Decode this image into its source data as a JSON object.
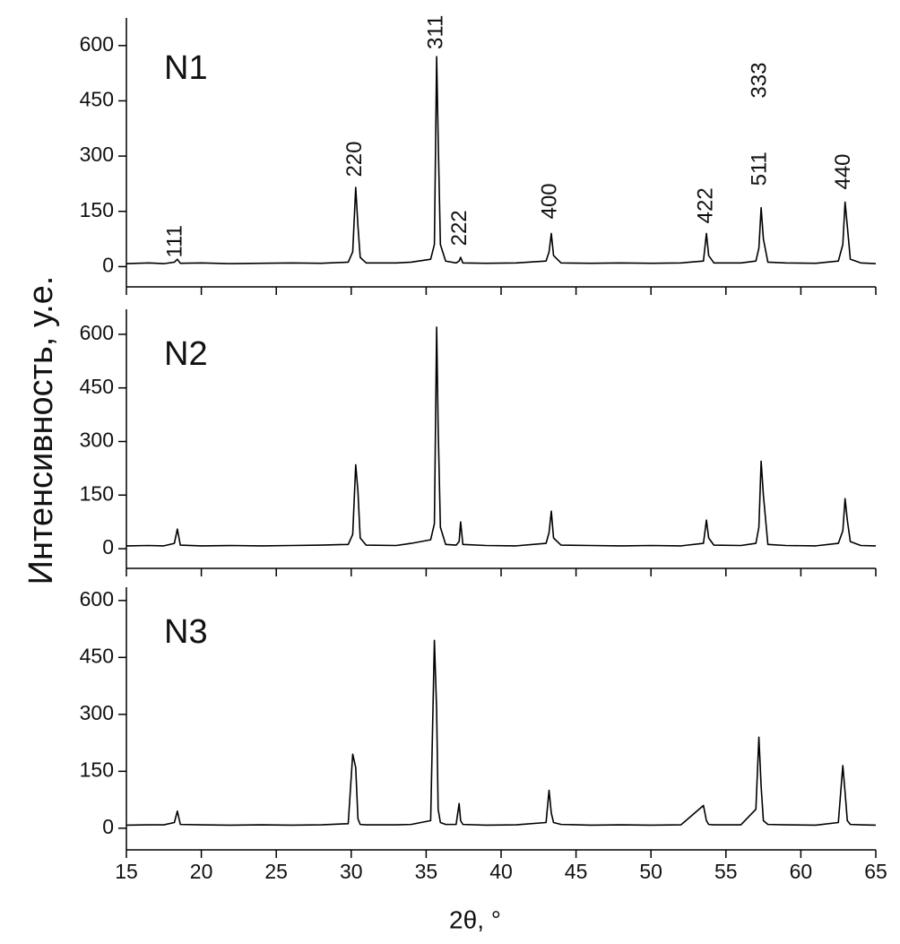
{
  "y_label": "Интенсивность, у.е.",
  "x_label": "2θ, °",
  "chart_data": [
    {
      "type": "line",
      "title": "N1",
      "color": "#000000",
      "x": [
        15,
        16.5,
        17.5,
        18.2,
        18.4,
        18.6,
        20,
        22,
        24,
        26,
        28,
        29.8,
        30.1,
        30.3,
        30.45,
        30.6,
        31,
        33,
        34,
        35.3,
        35.55,
        35.7,
        35.8,
        35.95,
        36.3,
        37,
        37.2,
        37.3,
        37.45,
        39,
        41,
        43,
        43.2,
        43.35,
        43.5,
        44,
        46,
        48,
        50,
        52,
        53.5,
        53.7,
        53.85,
        54.2,
        56,
        57,
        57.2,
        57.35,
        57.5,
        57.8,
        59,
        61,
        62.5,
        62.8,
        62.95,
        63.1,
        63.3,
        64,
        65
      ],
      "values": [
        8,
        10,
        8,
        12,
        20,
        9,
        10,
        8,
        9,
        10,
        9,
        12,
        40,
        215,
        110,
        25,
        10,
        10,
        12,
        20,
        60,
        570,
        350,
        60,
        15,
        10,
        15,
        25,
        10,
        9,
        10,
        15,
        40,
        90,
        30,
        10,
        9,
        10,
        9,
        10,
        15,
        90,
        30,
        10,
        10,
        15,
        50,
        160,
        75,
        12,
        10,
        9,
        15,
        60,
        175,
        110,
        20,
        10,
        8
      ],
      "xlim": [
        15,
        65
      ],
      "xticks": [
        15,
        20,
        25,
        30,
        35,
        40,
        45,
        50,
        55,
        60,
        65
      ],
      "ylim": [
        -55,
        675
      ],
      "yticks": [
        0,
        150,
        300,
        450,
        600
      ],
      "annotations": [
        {
          "text": "111",
          "x": 18.3,
          "y": 24
        },
        {
          "text": "220",
          "x": 30.3,
          "y": 243
        },
        {
          "text": "311",
          "x": 35.7,
          "y": 590
        },
        {
          "text": "222",
          "x": 37.3,
          "y": 56
        },
        {
          "text": "400",
          "x": 43.3,
          "y": 129
        },
        {
          "text": "422",
          "x": 53.7,
          "y": 117
        },
        {
          "text": "511",
          "x": 57.3,
          "y": 219
        },
        {
          "text": "333",
          "x": 57.3,
          "y": 457
        },
        {
          "text": "440",
          "x": 62.9,
          "y": 209
        }
      ]
    },
    {
      "type": "line",
      "title": "N2",
      "color": "#000000",
      "x": [
        15,
        16.5,
        17.5,
        18.2,
        18.4,
        18.6,
        20,
        22,
        24,
        26,
        28,
        29.8,
        30.1,
        30.3,
        30.45,
        30.6,
        31,
        33,
        34,
        35.3,
        35.55,
        35.7,
        35.8,
        35.95,
        36.3,
        37,
        37.2,
        37.3,
        37.45,
        39,
        41,
        43,
        43.2,
        43.35,
        43.5,
        44,
        46,
        48,
        50,
        52,
        53.5,
        53.7,
        53.85,
        54.2,
        56,
        57,
        57.2,
        57.35,
        57.5,
        57.8,
        59,
        61,
        62.5,
        62.8,
        62.95,
        63.1,
        63.3,
        64,
        65
      ],
      "values": [
        8,
        9,
        8,
        15,
        55,
        10,
        8,
        9,
        8,
        9,
        10,
        12,
        40,
        235,
        160,
        30,
        10,
        9,
        15,
        25,
        70,
        620,
        340,
        60,
        12,
        10,
        20,
        75,
        12,
        9,
        8,
        15,
        45,
        105,
        30,
        10,
        9,
        8,
        9,
        8,
        15,
        80,
        30,
        10,
        9,
        15,
        60,
        245,
        150,
        12,
        9,
        8,
        15,
        50,
        140,
        80,
        20,
        9,
        8
      ],
      "xlim": [
        15,
        65
      ],
      "xticks": [
        15,
        20,
        25,
        30,
        35,
        40,
        45,
        50,
        55,
        60,
        65
      ],
      "ylim": [
        -55,
        670
      ],
      "yticks": [
        0,
        150,
        300,
        450,
        600
      ]
    },
    {
      "type": "line",
      "title": "N3",
      "color": "#000000",
      "x": [
        15,
        16.5,
        17.5,
        18.2,
        18.4,
        18.6,
        20,
        22,
        24,
        26,
        28,
        29.8,
        30.1,
        30.3,
        30.45,
        30.6,
        31,
        33,
        34,
        35.3,
        35.55,
        35.7,
        35.8,
        35.95,
        36.3,
        37,
        37.2,
        37.3,
        37.45,
        39,
        41,
        43,
        43.2,
        43.35,
        43.5,
        44,
        46,
        48,
        50,
        52,
        53.5,
        53.7,
        53.85,
        54.2,
        56,
        57,
        57.2,
        57.35,
        57.5,
        57.8,
        59,
        61,
        62.5,
        62.8,
        62.95,
        63.1,
        63.3,
        64,
        65
      ],
      "values": [
        8,
        9,
        9,
        15,
        45,
        10,
        9,
        8,
        9,
        8,
        9,
        12,
        195,
        160,
        25,
        10,
        9,
        9,
        10,
        20,
        495,
        310,
        50,
        15,
        10,
        10,
        65,
        20,
        10,
        8,
        9,
        15,
        100,
        40,
        15,
        10,
        8,
        9,
        8,
        9,
        60,
        20,
        10,
        9,
        9,
        50,
        240,
        110,
        20,
        10,
        9,
        8,
        15,
        165,
        95,
        20,
        10,
        9,
        8
      ],
      "xlim": [
        15,
        65
      ],
      "xticks": [
        15,
        20,
        25,
        30,
        35,
        40,
        45,
        50,
        55,
        60,
        65
      ],
      "ylim": [
        -57,
        635
      ],
      "yticks": [
        0,
        150,
        300,
        450,
        600
      ]
    }
  ]
}
